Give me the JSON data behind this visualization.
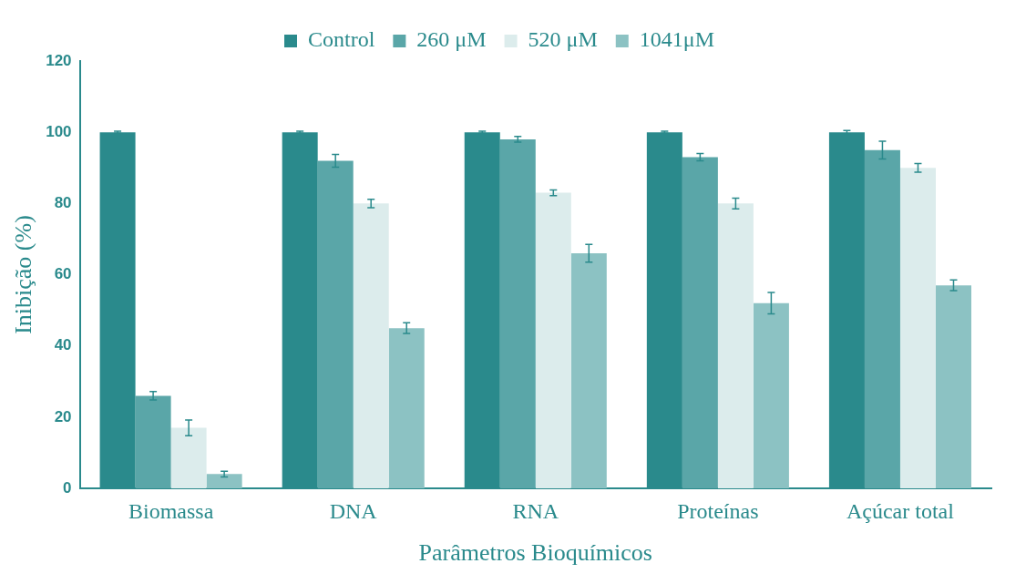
{
  "chart_data": {
    "type": "bar",
    "xlabel": "Parâmetros Bioquímicos",
    "ylabel": "Inibição (%)",
    "categories": [
      "Biomassa",
      "DNA",
      "RNA",
      "Proteínas",
      "Açúcar total"
    ],
    "series": [
      {
        "name": "Control",
        "color": "#2a8a8c",
        "values": [
          100,
          100,
          100,
          100,
          100
        ],
        "errors": [
          0.3,
          0.3,
          0.3,
          0.3,
          0.5
        ]
      },
      {
        "name": "260 μM",
        "color": "#5aa6a8",
        "values": [
          26,
          92,
          98,
          93,
          95
        ],
        "errors": [
          1.2,
          1.8,
          0.8,
          1,
          2.5
        ]
      },
      {
        "name": "520 μM",
        "color": "#dcecec",
        "values": [
          17,
          80,
          83,
          80,
          90
        ],
        "errors": [
          2.2,
          1.2,
          0.8,
          1.5,
          1.2
        ]
      },
      {
        "name": "1041μM",
        "color": "#8cc2c3",
        "values": [
          4,
          45,
          66,
          52,
          57
        ],
        "errors": [
          0.8,
          1.5,
          2.5,
          3,
          1.5
        ]
      }
    ],
    "ylim": [
      0,
      120
    ],
    "yticks": [
      0,
      20,
      40,
      60,
      80,
      100,
      120
    ],
    "grid": false,
    "legend": "top"
  }
}
